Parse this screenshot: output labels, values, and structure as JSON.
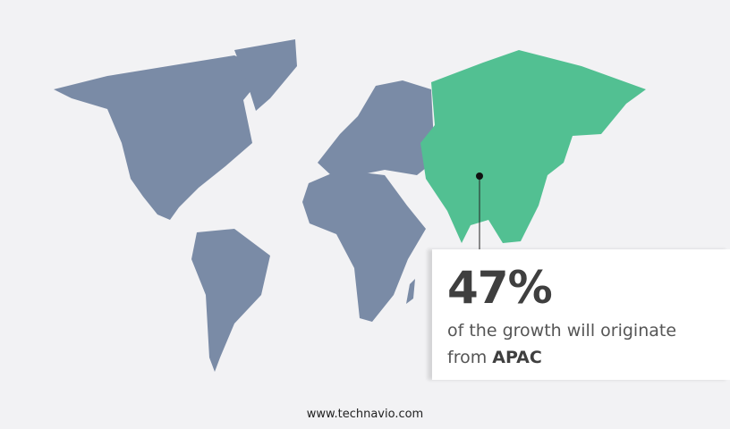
{
  "stat": {
    "value": "47%",
    "text": "of the growth will originate",
    "prefix": "from",
    "region": "APAC"
  },
  "footer": {
    "url": "www.technavio.com"
  },
  "colors": {
    "highlight": "#52c092",
    "land": "#7a8ba6",
    "background": "#f2f2f4"
  }
}
